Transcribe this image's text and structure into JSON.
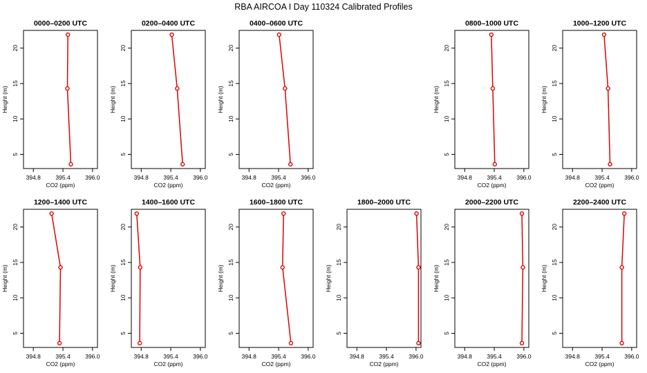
{
  "figure": {
    "title": "RBA AIRCOA I  Day 110324  Calibrated Profiles"
  },
  "chart_data": [
    {
      "type": "line",
      "title": "0000–0200 UTC",
      "xlabel": "CO2 (ppm)",
      "ylabel": "Height (m)",
      "xlim": [
        394.6,
        396.1
      ],
      "ylim": [
        3,
        22.5
      ],
      "xticks": [
        "394.8",
        "395.4",
        "396.0"
      ],
      "yticks": [
        "5",
        "10",
        "15",
        "20"
      ],
      "series": [
        {
          "x": [
            395.56,
            395.49,
            395.5
          ],
          "y": [
            3.6,
            14.3,
            21.9
          ]
        }
      ]
    },
    {
      "type": "line",
      "title": "0200–0400 UTC",
      "xlabel": "CO2 (ppm)",
      "ylabel": "Height (m)",
      "xlim": [
        394.6,
        396.1
      ],
      "ylim": [
        3,
        22.5
      ],
      "xticks": [
        "394.8",
        "395.4",
        "396.0"
      ],
      "yticks": [
        "5",
        "10",
        "15",
        "20"
      ],
      "series": [
        {
          "x": [
            395.64,
            395.53,
            395.42
          ],
          "y": [
            3.6,
            14.3,
            21.9
          ]
        }
      ]
    },
    {
      "type": "line",
      "title": "0400–0600 UTC",
      "xlabel": "CO2 (ppm)",
      "ylabel": "Height (m)",
      "xlim": [
        394.6,
        396.1
      ],
      "ylim": [
        3,
        22.5
      ],
      "xticks": [
        "394.8",
        "395.4",
        "396.0"
      ],
      "yticks": [
        "5",
        "10",
        "15",
        "20"
      ],
      "series": [
        {
          "x": [
            395.64,
            395.53,
            395.41
          ],
          "y": [
            3.6,
            14.3,
            21.9
          ]
        }
      ]
    },
    null,
    {
      "type": "line",
      "title": "0800–1000 UTC",
      "xlabel": "CO2 (ppm)",
      "ylabel": "Height (m)",
      "xlim": [
        394.6,
        396.1
      ],
      "ylim": [
        3,
        22.5
      ],
      "xticks": [
        "394.8",
        "395.4",
        "396.0"
      ],
      "yticks": [
        "5",
        "10",
        "15",
        "20"
      ],
      "series": [
        {
          "x": [
            395.41,
            395.37,
            395.34
          ],
          "y": [
            3.6,
            14.3,
            21.9
          ]
        }
      ]
    },
    {
      "type": "line",
      "title": "1000–1200 UTC",
      "xlabel": "CO2 (ppm)",
      "ylabel": "Height (m)",
      "xlim": [
        394.6,
        396.1
      ],
      "ylim": [
        3,
        22.5
      ],
      "xticks": [
        "394.8",
        "395.4",
        "396.0"
      ],
      "yticks": [
        "5",
        "10",
        "15",
        "20"
      ],
      "series": [
        {
          "x": [
            395.56,
            395.52,
            395.44
          ],
          "y": [
            3.6,
            14.3,
            21.9
          ]
        }
      ]
    },
    {
      "type": "line",
      "title": "1200–1400 UTC",
      "xlabel": "CO2 (ppm)",
      "ylabel": "Height (m)",
      "xlim": [
        394.6,
        396.1
      ],
      "ylim": [
        3,
        22.5
      ],
      "xticks": [
        "394.8",
        "395.4",
        "396.0"
      ],
      "yticks": [
        "5",
        "10",
        "15",
        "20"
      ],
      "series": [
        {
          "x": [
            395.33,
            395.35,
            395.17
          ],
          "y": [
            3.6,
            14.3,
            21.9
          ]
        }
      ]
    },
    {
      "type": "line",
      "title": "1400–1600 UTC",
      "xlabel": "CO2 (ppm)",
      "ylabel": "Height (m)",
      "xlim": [
        394.6,
        396.1
      ],
      "ylim": [
        3,
        22.5
      ],
      "xticks": [
        "394.8",
        "395.4",
        "396.0"
      ],
      "yticks": [
        "5",
        "10",
        "15",
        "20"
      ],
      "series": [
        {
          "x": [
            394.77,
            394.78,
            394.71
          ],
          "y": [
            3.6,
            14.3,
            21.9
          ]
        }
      ]
    },
    {
      "type": "line",
      "title": "1600–1800 UTC",
      "xlabel": "CO2 (ppm)",
      "ylabel": "Height (m)",
      "xlim": [
        394.6,
        396.1
      ],
      "ylim": [
        3,
        22.5
      ],
      "xticks": [
        "394.8",
        "395.4",
        "396.0"
      ],
      "yticks": [
        "5",
        "10",
        "15",
        "20"
      ],
      "series": [
        {
          "x": [
            395.65,
            395.48,
            395.5
          ],
          "y": [
            3.6,
            14.3,
            21.9
          ]
        }
      ]
    },
    {
      "type": "line",
      "title": "1800–2000 UTC",
      "xlabel": "CO2 (ppm)",
      "ylabel": "Height (m)",
      "xlim": [
        394.6,
        396.1
      ],
      "ylim": [
        3,
        22.5
      ],
      "xticks": [
        "394.8",
        "395.4",
        "396.0"
      ],
      "yticks": [
        "5",
        "10",
        "15",
        "20"
      ],
      "series": [
        {
          "x": [
            396.05,
            396.05,
            396.01
          ],
          "y": [
            3.6,
            14.3,
            21.9
          ]
        }
      ]
    },
    {
      "type": "line",
      "title": "2000–2200 UTC",
      "xlabel": "CO2 (ppm)",
      "ylabel": "Height (m)",
      "xlim": [
        394.6,
        396.1
      ],
      "ylim": [
        3,
        22.5
      ],
      "xticks": [
        "394.8",
        "395.4",
        "396.0"
      ],
      "yticks": [
        "5",
        "10",
        "15",
        "20"
      ],
      "series": [
        {
          "x": [
            395.96,
            395.98,
            395.96
          ],
          "y": [
            3.6,
            14.3,
            21.9
          ]
        }
      ]
    },
    {
      "type": "line",
      "title": "2200–2400 UTC",
      "xlabel": "CO2 (ppm)",
      "ylabel": "Height (m)",
      "xlim": [
        394.6,
        396.1
      ],
      "ylim": [
        3,
        22.5
      ],
      "xticks": [
        "394.8",
        "395.4",
        "396.0"
      ],
      "yticks": [
        "5",
        "10",
        "15",
        "20"
      ],
      "series": [
        {
          "x": [
            395.8,
            395.8,
            395.85
          ],
          "y": [
            3.6,
            14.3,
            21.9
          ]
        }
      ]
    }
  ]
}
